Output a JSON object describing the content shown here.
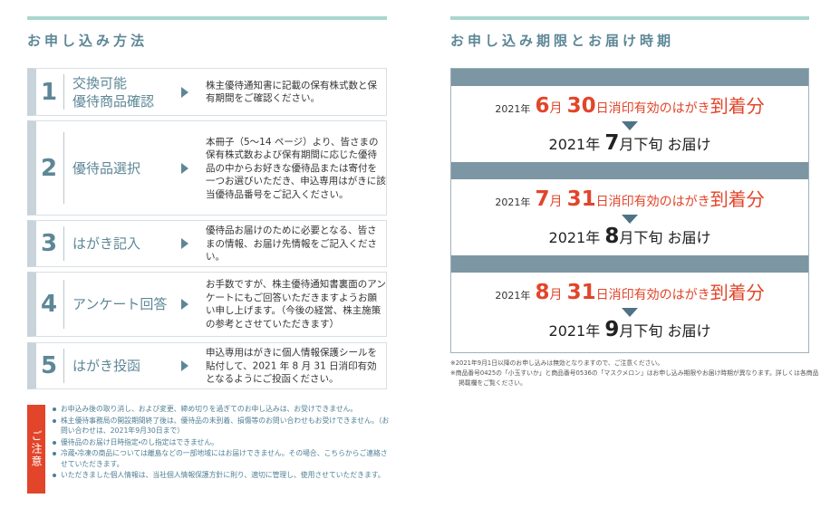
{
  "left": {
    "title": "お申し込み方法",
    "steps": [
      {
        "number": "1",
        "label": [
          "交換可能",
          "優待商品確認"
        ],
        "description": "株主優待通知書に記載の保有株式数と保有期間をご確認ください。"
      },
      {
        "number": "2",
        "label": [
          "優待品選択"
        ],
        "description": "本冊子（5〜14 ページ）より、皆さまの保有株式数および保有期間に応じた優待品の中からお好きな優待品または寄付を一つお選びいただき、申込専用はがきに該当優待品番号をご記入ください。"
      },
      {
        "number": "3",
        "label": [
          "はがき記入"
        ],
        "description": "優待品お届けのために必要となる、皆さまの情報、お届け先情報をご記入ください。"
      },
      {
        "number": "4",
        "label": [
          "アンケート回答"
        ],
        "description": "お手数ですが、株主優待通知書裏面のアンケートにもご回答いただきますようお願い申し上げます。（今後の経営、株主施策の参考とさせていただきます）"
      },
      {
        "number": "5",
        "label": [
          "はがき投函"
        ],
        "description": "申込専用はがきに個人情報保護シールを貼付して、2021 年 8 月 31 日消印有効となるようにご投函ください。"
      }
    ],
    "notice_label": "ご注意",
    "notes": [
      "お申込み後の取り消し、および変更、締め切りを過ぎてのお申し込みは、お受けできません。",
      "株主優待事務局の開設期間終了後は、優待品の未到着、損傷等のお問い合わせもお受けできません。（お問い合わせは、2021年9月30日まで）",
      "優待品のお届け日時指定・のし指定はできません。",
      "冷蔵・冷凍の商品については離島などの一部地域にはお届けできません。その場合、こちらからご連絡させていただきます。",
      "いただきました個人情報は、当社個人情報保護方針に則り、適切に管理し、使用させていただきます。"
    ]
  },
  "right": {
    "title": "お申し込み期限とお届け時期",
    "periods": [
      {
        "deadline_year": "2021年",
        "deadline_month": "6",
        "month_unit": "月",
        "deadline_day": "30",
        "deadline_suffix": "日消印有効のはがき",
        "arrival": "到着分",
        "delivery_year": "2021年",
        "delivery_month": "7",
        "delivery_suffix": "月下旬",
        "delivery": "お届け"
      },
      {
        "deadline_year": "2021年",
        "deadline_month": "7",
        "month_unit": "月",
        "deadline_day": "31",
        "deadline_suffix": "日消印有効のはがき",
        "arrival": "到着分",
        "delivery_year": "2021年",
        "delivery_month": "8",
        "delivery_suffix": "月下旬",
        "delivery": "お届け"
      },
      {
        "deadline_year": "2021年",
        "deadline_month": "8",
        "month_unit": "月",
        "deadline_day": "31",
        "deadline_suffix": "日消印有効のはがき",
        "arrival": "到着分",
        "delivery_year": "2021年",
        "delivery_month": "9",
        "delivery_suffix": "月下旬",
        "delivery": "お届け"
      }
    ],
    "footnotes": [
      "※2021年9月1日以降のお申し込みは無効となりますので、ご注意ください。",
      "※商品番号0425の「小玉すいか」と商品番号0536の「マスクメロン」はお申し込み期限やお届け時期が異なります。詳しくは各商品掲載欄をご覧ください。"
    ]
  }
}
